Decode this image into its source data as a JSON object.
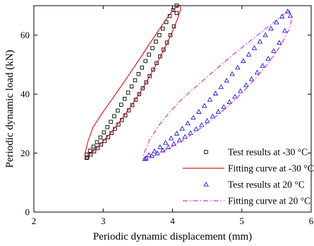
{
  "chart_data": {
    "type": "scatter",
    "xlabel": "Periodic dynamic displacement (mm)",
    "ylabel": "Periodic dynamic load (kN)",
    "xlim": [
      2,
      6
    ],
    "ylim": [
      0,
      70
    ],
    "xticks": [
      "2",
      "3",
      "4",
      "5",
      "6"
    ],
    "yticks": [
      "0",
      "20",
      "40",
      "60"
    ],
    "legend_position": "bottom-right",
    "series": [
      {
        "name": "Test results  at -30 °C",
        "kind": "markers",
        "marker": "square",
        "color": "#000000",
        "x": [
          2.77,
          2.82,
          2.87,
          2.92,
          2.97,
          3.02,
          3.07,
          3.12,
          3.17,
          3.22,
          3.27,
          3.32,
          3.37,
          3.42,
          3.47,
          3.52,
          3.57,
          3.62,
          3.67,
          3.72,
          3.77,
          3.82,
          3.87,
          3.92,
          3.97,
          4.02,
          4.06,
          4.06,
          4.01,
          3.96,
          3.91,
          3.86,
          3.81,
          3.76,
          3.71,
          3.66,
          3.61,
          3.56,
          3.51,
          3.46,
          3.41,
          3.36,
          3.31,
          3.26,
          3.21,
          3.16,
          3.11,
          3.06,
          3.01,
          2.96,
          2.91,
          2.86,
          2.81,
          2.76,
          2.76
        ],
        "y": [
          18.5,
          19.5,
          20.6,
          21.7,
          22.9,
          24.1,
          25.4,
          26.8,
          28.2,
          29.7,
          31.2,
          32.8,
          34.5,
          36.3,
          38.1,
          40.0,
          42.0,
          44.0,
          46.1,
          48.3,
          50.5,
          52.8,
          55.1,
          57.5,
          60.0,
          63.0,
          67.5,
          70.0,
          68.5,
          66.5,
          64.4,
          62.2,
          60.0,
          57.8,
          55.6,
          53.4,
          51.2,
          49.0,
          46.8,
          44.7,
          42.6,
          40.5,
          38.4,
          36.4,
          34.4,
          32.5,
          30.6,
          28.8,
          27.0,
          25.3,
          23.7,
          22.2,
          20.8,
          19.5,
          18.4
        ]
      },
      {
        "name": "Fitting curve at -30 °C",
        "kind": "line",
        "color": "#e41a1c",
        "closed": true,
        "x": [
          2.74,
          2.8,
          2.9,
          3.0,
          3.1,
          3.2,
          3.3,
          3.4,
          3.5,
          3.6,
          3.7,
          3.8,
          3.9,
          4.0,
          4.08,
          4.12,
          4.1,
          4.05,
          3.95,
          3.85,
          3.75,
          3.65,
          3.55,
          3.45,
          3.35,
          3.25,
          3.15,
          3.05,
          2.95,
          2.85,
          2.78,
          2.74
        ],
        "y": [
          18.2,
          19.4,
          21.6,
          24.0,
          26.6,
          29.5,
          32.6,
          35.9,
          39.4,
          43.2,
          47.3,
          51.6,
          56.2,
          61.3,
          66.0,
          69.0,
          70.2,
          69.6,
          66.8,
          63.4,
          59.9,
          56.4,
          52.8,
          49.3,
          45.8,
          42.4,
          39.0,
          35.7,
          32.3,
          28.6,
          24.0,
          20.0
        ]
      },
      {
        "name": "Test results at 20 °C",
        "kind": "markers",
        "marker": "triangle",
        "color": "#1a1adc",
        "x": [
          3.62,
          3.7,
          3.78,
          3.86,
          3.94,
          4.02,
          4.1,
          4.18,
          4.26,
          4.34,
          4.42,
          4.5,
          4.58,
          4.66,
          4.74,
          4.82,
          4.9,
          4.98,
          5.06,
          5.14,
          5.22,
          5.3,
          5.38,
          5.46,
          5.54,
          5.62,
          5.7,
          5.66,
          5.58,
          5.5,
          5.42,
          5.34,
          5.26,
          5.18,
          5.1,
          5.02,
          4.94,
          4.86,
          4.78,
          4.7,
          4.62,
          4.54,
          4.46,
          4.38,
          4.3,
          4.22,
          4.14,
          4.06,
          3.98,
          3.9,
          3.82,
          3.74,
          3.66,
          3.6
        ],
        "y": [
          18.2,
          19.0,
          19.9,
          20.9,
          22.0,
          23.1,
          24.3,
          25.5,
          26.8,
          28.1,
          29.5,
          30.9,
          32.4,
          34.0,
          35.6,
          37.3,
          39.1,
          41.0,
          43.0,
          45.1,
          47.3,
          49.6,
          52.0,
          54.6,
          57.4,
          61.5,
          66.5,
          68.0,
          66.3,
          64.3,
          62.2,
          60.0,
          57.8,
          55.6,
          53.4,
          51.2,
          49.0,
          46.8,
          44.6,
          42.4,
          40.2,
          38.1,
          36.0,
          34.0,
          32.0,
          30.1,
          28.3,
          26.6,
          25.0,
          23.5,
          22.0,
          20.6,
          19.3,
          18.0
        ]
      },
      {
        "name": "Fitting curve at 20 °C",
        "kind": "line",
        "dash": "dashdot",
        "color": "#e030e0",
        "closed": true,
        "x": [
          3.58,
          3.7,
          3.85,
          4.0,
          4.15,
          4.3,
          4.45,
          4.6,
          4.75,
          4.9,
          5.05,
          5.2,
          5.35,
          5.5,
          5.62,
          5.7,
          5.72,
          5.68,
          5.58,
          5.45,
          5.3,
          5.15,
          5.0,
          4.85,
          4.7,
          4.55,
          4.4,
          4.25,
          4.1,
          3.95,
          3.8,
          3.67,
          3.58
        ],
        "y": [
          17.6,
          18.7,
          20.4,
          22.3,
          24.4,
          26.7,
          29.2,
          32.0,
          34.9,
          38.1,
          41.6,
          45.4,
          49.6,
          54.4,
          59.0,
          63.0,
          66.5,
          68.4,
          66.6,
          64.2,
          61.4,
          58.6,
          55.8,
          52.9,
          49.9,
          46.9,
          43.8,
          40.7,
          37.5,
          33.7,
          29.3,
          24.5,
          19.5
        ]
      }
    ]
  }
}
